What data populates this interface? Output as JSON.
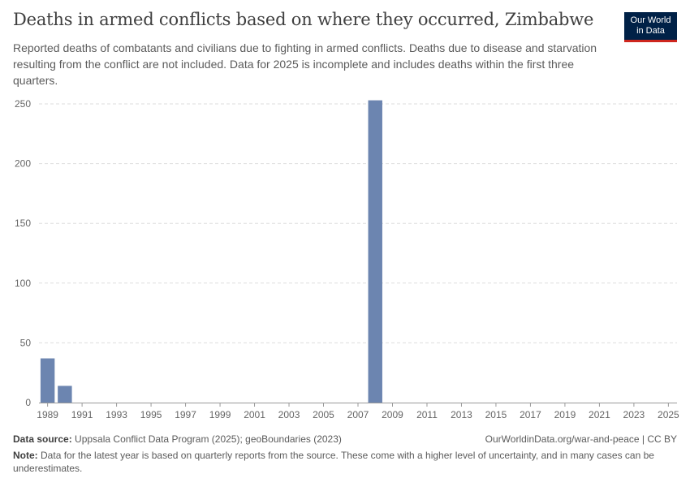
{
  "header": {
    "title": "Deaths in armed conflicts based on where they occurred, Zimbabwe",
    "subtitle": "Reported deaths of combatants and civilians due to fighting in armed conflicts. Deaths due to disease and starvation resulting from the conflict are not included. Data for 2025 is incomplete and includes deaths within the first three quarters.",
    "logo_line1": "Our World",
    "logo_line2": "in Data"
  },
  "chart_data": {
    "type": "bar",
    "title": "Deaths in armed conflicts based on where they occurred, Zimbabwe",
    "xlabel": "",
    "ylabel": "",
    "categories": [
      1989,
      1990,
      1991,
      1992,
      1993,
      1994,
      1995,
      1996,
      1997,
      1998,
      1999,
      2000,
      2001,
      2002,
      2003,
      2004,
      2005,
      2006,
      2007,
      2008,
      2009,
      2010,
      2011,
      2012,
      2013,
      2014,
      2015,
      2016,
      2017,
      2018,
      2019,
      2020,
      2021,
      2022,
      2023,
      2024,
      2025
    ],
    "values": [
      37,
      14,
      0,
      0,
      0,
      0,
      0,
      0,
      0,
      0,
      0,
      0,
      0,
      0,
      0,
      0,
      0,
      0,
      0,
      253,
      0,
      0,
      0,
      0,
      0,
      0,
      0,
      0,
      0,
      0,
      0,
      0,
      0,
      0,
      0,
      0,
      0
    ],
    "ylim": [
      0,
      250
    ],
    "yticks": [
      0,
      50,
      100,
      150,
      200,
      250
    ],
    "xtick_labels": [
      "1989",
      "1991",
      "1993",
      "1995",
      "1997",
      "1999",
      "2001",
      "2003",
      "2005",
      "2007",
      "2009",
      "2011",
      "2013",
      "2015",
      "2017",
      "2019",
      "2021",
      "2023",
      "2025"
    ],
    "bar_color": "#6c85b0",
    "grid": true
  },
  "footer": {
    "source_label": "Data source:",
    "source_text": "Uppsala Conflict Data Program (2025); geoBoundaries (2023)",
    "url_text": "OurWorldinData.org/war-and-peace | CC BY",
    "note_label": "Note:",
    "note_text": "Data for the latest year is based on quarterly reports from the source. These come with a higher level of uncertainty, and in many cases can be underestimates."
  }
}
